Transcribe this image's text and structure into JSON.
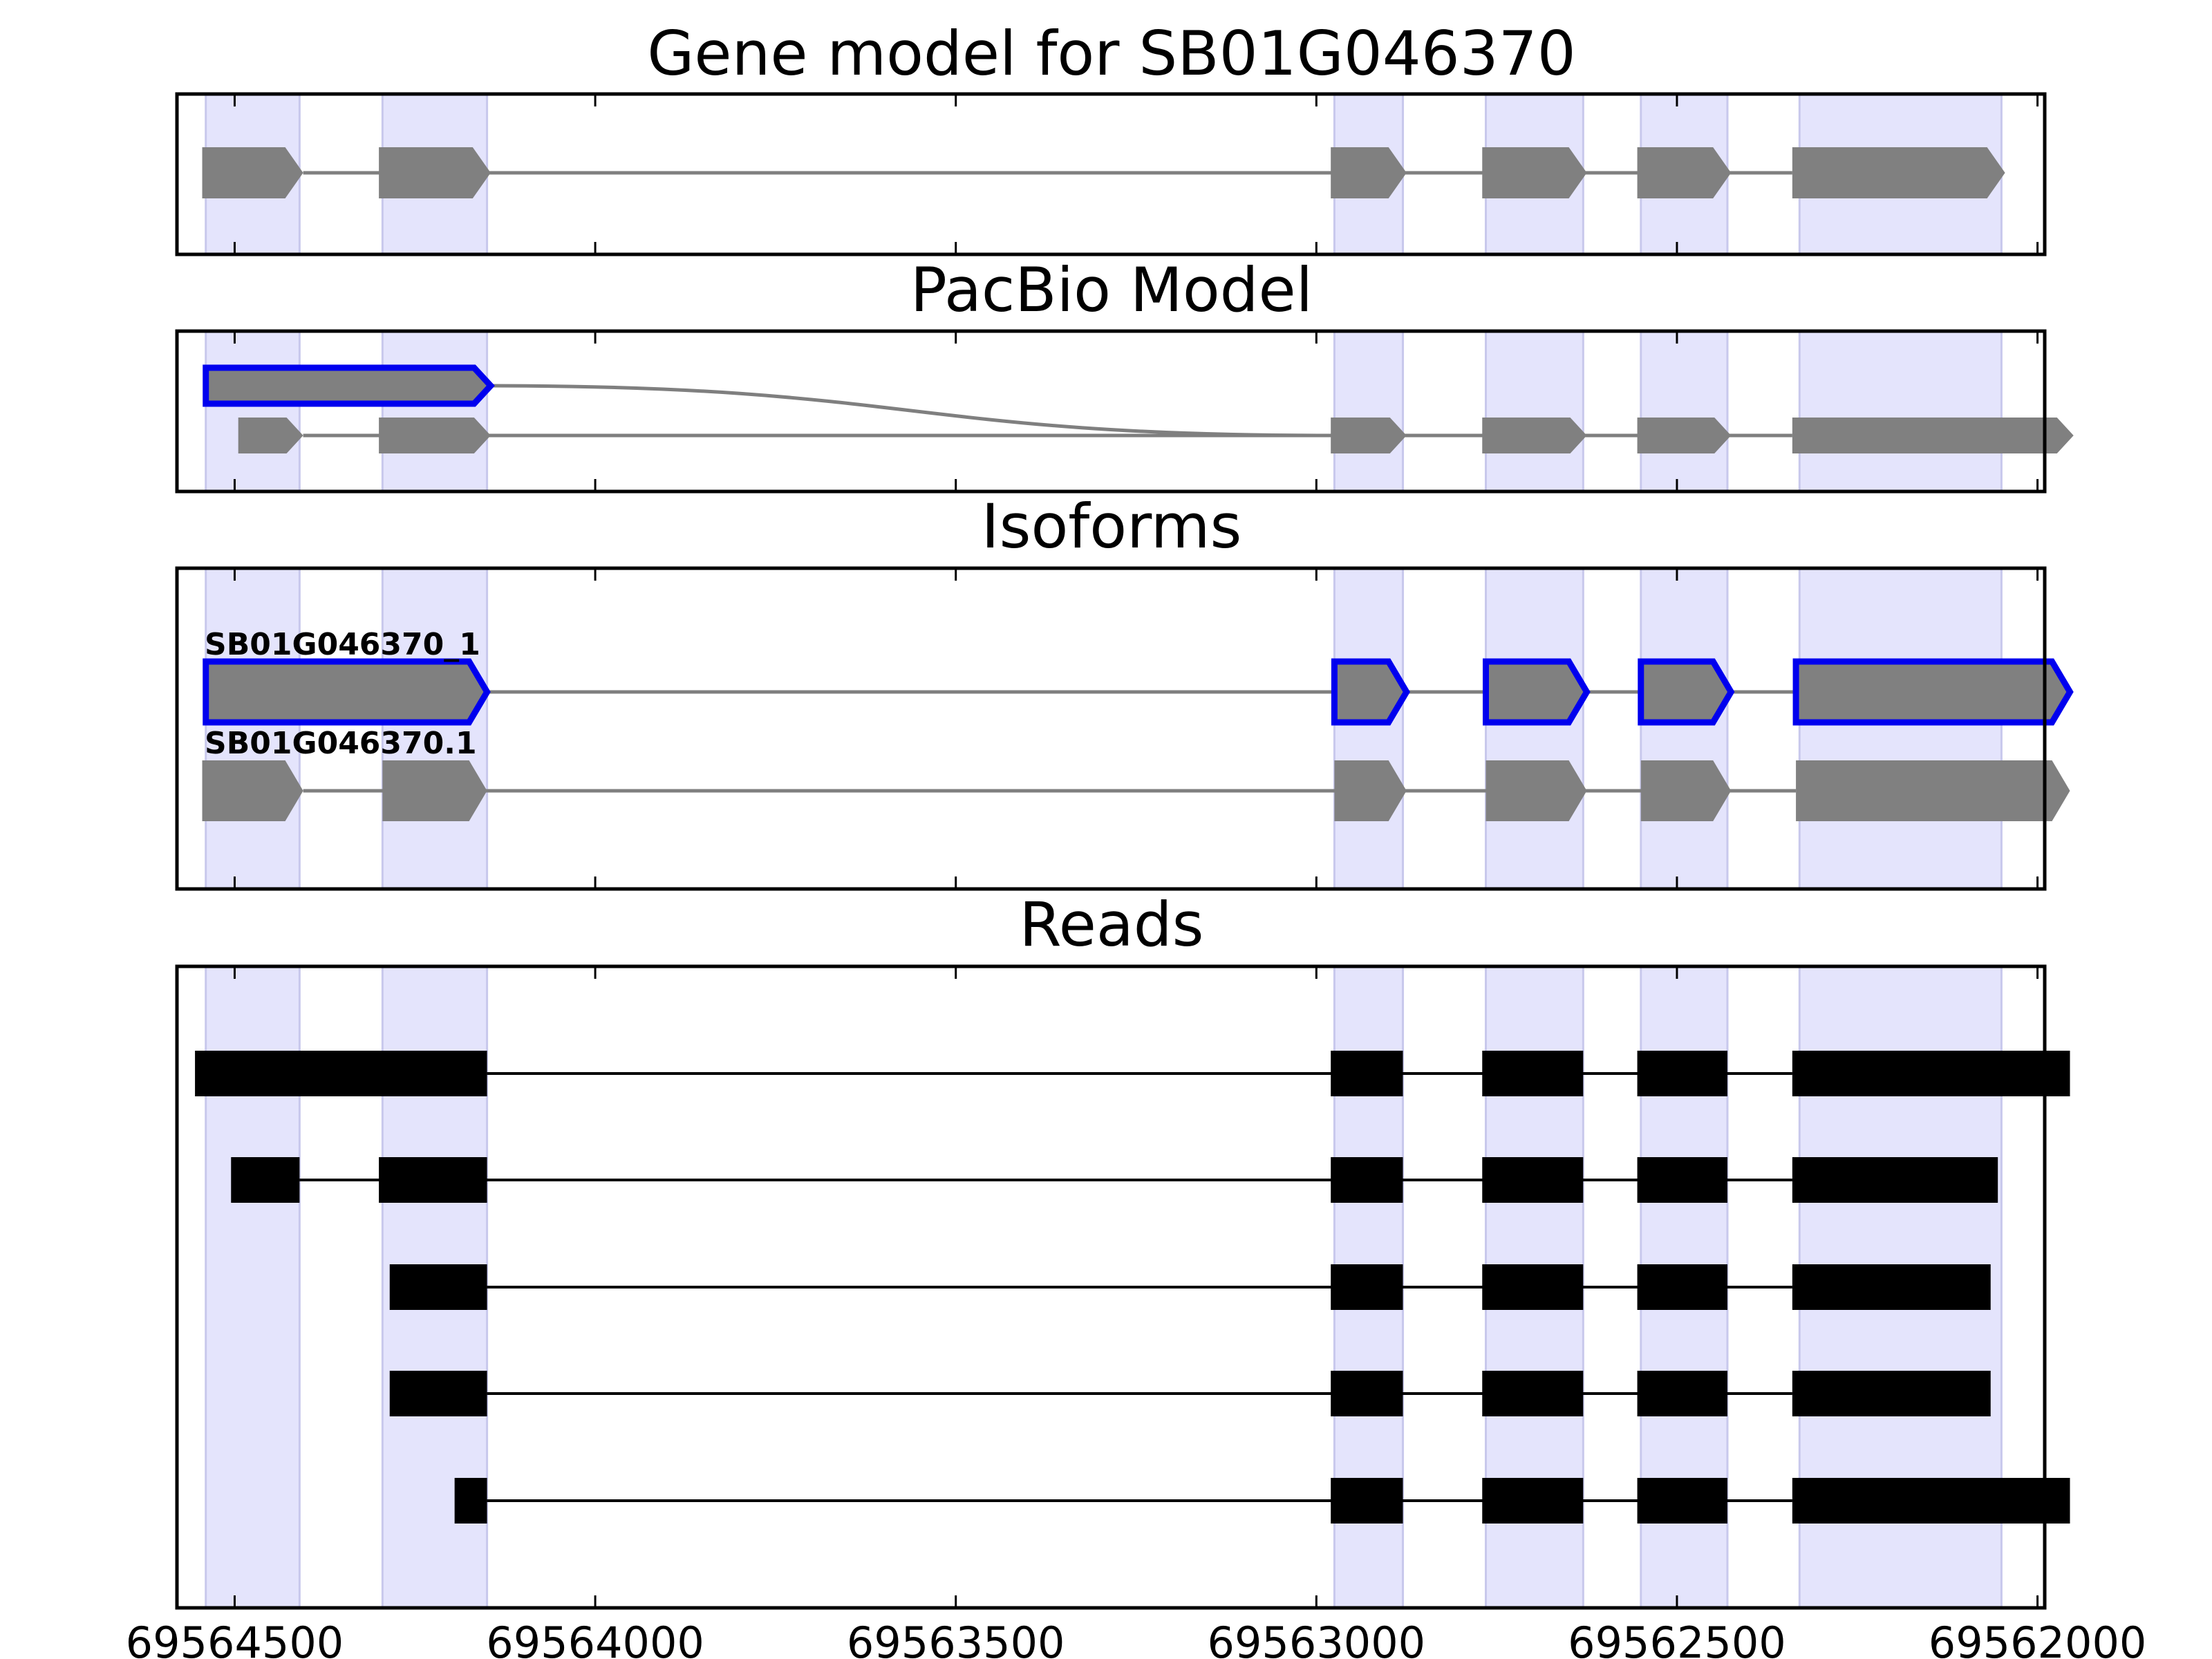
{
  "colors": {
    "exon_band": "#e4e4fc",
    "exon_band_edge": "#c8c8ec",
    "gene_feature": "#808080",
    "intron_line": "#7f7f7f",
    "highlight_outline": "#0000ee",
    "read": "#000000",
    "frame": "#000000"
  },
  "chart_data": {
    "type": "gene_model",
    "x_direction": "reversed",
    "xlim": [
      69564580,
      69561990
    ],
    "x_ticks": [
      69564500,
      69564000,
      69563500,
      69563000,
      69562500,
      69562000
    ],
    "x_tick_labels": [
      "69564500",
      "69564000",
      "69563500",
      "69563000",
      "69562500",
      "69562000"
    ],
    "exon_regions": [
      [
        69564540,
        69564410
      ],
      [
        69564295,
        69564150
      ],
      [
        69562975,
        69562880
      ],
      [
        69562765,
        69562630
      ],
      [
        69562550,
        69562430
      ],
      [
        69562330,
        69562050
      ]
    ],
    "panels": [
      {
        "title": "Gene model for SB01G046370",
        "kind": "gene",
        "tracks": [
          {
            "label": "",
            "highlight": false,
            "exons": [
              [
                69564545,
                69564405
              ],
              [
                69564300,
                69564145
              ],
              [
                69562980,
                69562875
              ],
              [
                69562770,
                69562625
              ],
              [
                69562555,
                69562425
              ],
              [
                69562340,
                69562045
              ]
            ]
          }
        ]
      },
      {
        "title": "PacBio Model",
        "kind": "gene",
        "tracks": [
          {
            "label": "",
            "highlight": true,
            "link": [
              69564145,
              69562980
            ],
            "exons": [
              [
                69564540,
                69564145
              ]
            ]
          },
          {
            "label": "",
            "highlight": false,
            "exons": [
              [
                69564495,
                69564405
              ],
              [
                69564300,
                69564145
              ],
              [
                69562980,
                69562875
              ],
              [
                69562770,
                69562625
              ],
              [
                69562555,
                69562425
              ],
              [
                69562340,
                69561950
              ]
            ]
          }
        ]
      },
      {
        "title": "Isoforms",
        "kind": "gene",
        "tracks": [
          {
            "label": "SB01G046370_1",
            "highlight": true,
            "exons": [
              [
                69564540,
                69564150
              ],
              [
                69562975,
                69562875
              ],
              [
                69562765,
                69562625
              ],
              [
                69562550,
                69562425
              ],
              [
                69562335,
                69561955
              ]
            ]
          },
          {
            "label": "SB01G046370.1",
            "highlight": false,
            "exons": [
              [
                69564545,
                69564405
              ],
              [
                69564295,
                69564150
              ],
              [
                69562975,
                69562875
              ],
              [
                69562765,
                69562625
              ],
              [
                69562550,
                69562425
              ],
              [
                69562335,
                69561955
              ]
            ]
          }
        ]
      },
      {
        "title": "Reads",
        "kind": "reads",
        "tracks": [
          {
            "exons": [
              [
                69564555,
                69564150
              ],
              [
                69562980,
                69562880
              ],
              [
                69562770,
                69562630
              ],
              [
                69562555,
                69562430
              ],
              [
                69562340,
                69561955
              ]
            ]
          },
          {
            "exons": [
              [
                69564505,
                69564410
              ],
              [
                69564300,
                69564150
              ],
              [
                69562980,
                69562880
              ],
              [
                69562770,
                69562630
              ],
              [
                69562555,
                69562430
              ],
              [
                69562340,
                69562055
              ]
            ]
          },
          {
            "exons": [
              [
                69564285,
                69564150
              ],
              [
                69562980,
                69562880
              ],
              [
                69562770,
                69562630
              ],
              [
                69562555,
                69562430
              ],
              [
                69562340,
                69562065
              ]
            ]
          },
          {
            "exons": [
              [
                69564285,
                69564150
              ],
              [
                69562980,
                69562880
              ],
              [
                69562770,
                69562630
              ],
              [
                69562555,
                69562430
              ],
              [
                69562340,
                69562065
              ]
            ]
          },
          {
            "exons": [
              [
                69564195,
                69564150
              ],
              [
                69562980,
                69562880
              ],
              [
                69562770,
                69562630
              ],
              [
                69562555,
                69562430
              ],
              [
                69562340,
                69561955
              ]
            ]
          }
        ]
      }
    ]
  }
}
